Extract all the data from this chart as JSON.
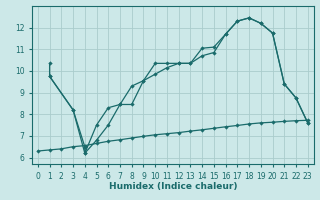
{
  "bg_color": "#cce8e8",
  "grid_color": "#aacccc",
  "line_color": "#1a6b6b",
  "marker": "D",
  "markersize": 2.2,
  "linewidth": 0.9,
  "xlabel": "Humidex (Indice chaleur)",
  "xlabel_fontsize": 6.5,
  "xlabel_fontweight": "bold",
  "xlim": [
    -0.5,
    23.5
  ],
  "ylim": [
    5.7,
    13.0
  ],
  "yticks": [
    6,
    7,
    8,
    9,
    10,
    11,
    12
  ],
  "xticks": [
    0,
    1,
    2,
    3,
    4,
    5,
    6,
    7,
    8,
    9,
    10,
    11,
    12,
    13,
    14,
    15,
    16,
    17,
    18,
    19,
    20,
    21,
    22,
    23
  ],
  "tick_labelsize": 5.5,
  "series1_x": [
    1,
    1,
    3,
    4,
    4,
    5,
    6,
    7,
    8,
    9,
    10,
    11,
    12,
    13,
    14,
    15,
    16,
    17,
    18,
    19,
    20,
    21,
    22,
    23
  ],
  "series1_y": [
    10.35,
    9.75,
    8.2,
    6.5,
    6.2,
    7.5,
    8.3,
    8.45,
    9.3,
    9.55,
    10.35,
    10.35,
    10.35,
    10.35,
    11.05,
    11.1,
    11.7,
    12.3,
    12.45,
    12.2,
    11.75,
    9.4,
    8.75,
    7.6
  ],
  "series2_x": [
    1,
    3,
    4,
    5,
    6,
    7,
    8,
    9,
    10,
    11,
    12,
    13,
    14,
    15,
    16,
    17,
    18,
    19,
    20,
    21,
    22,
    23
  ],
  "series2_y": [
    9.75,
    8.2,
    6.2,
    6.8,
    7.5,
    8.45,
    8.45,
    9.55,
    9.85,
    10.15,
    10.35,
    10.35,
    10.7,
    10.85,
    11.7,
    12.3,
    12.45,
    12.2,
    11.75,
    9.4,
    8.75,
    7.6
  ],
  "series3_x": [
    0,
    1,
    2,
    3,
    4,
    5,
    6,
    7,
    8,
    9,
    10,
    11,
    12,
    13,
    14,
    15,
    16,
    17,
    18,
    19,
    20,
    21,
    22,
    23
  ],
  "series3_y": [
    6.3,
    6.35,
    6.4,
    6.5,
    6.55,
    6.65,
    6.75,
    6.82,
    6.9,
    6.98,
    7.05,
    7.1,
    7.15,
    7.22,
    7.28,
    7.35,
    7.42,
    7.48,
    7.55,
    7.6,
    7.63,
    7.67,
    7.7,
    7.72
  ]
}
